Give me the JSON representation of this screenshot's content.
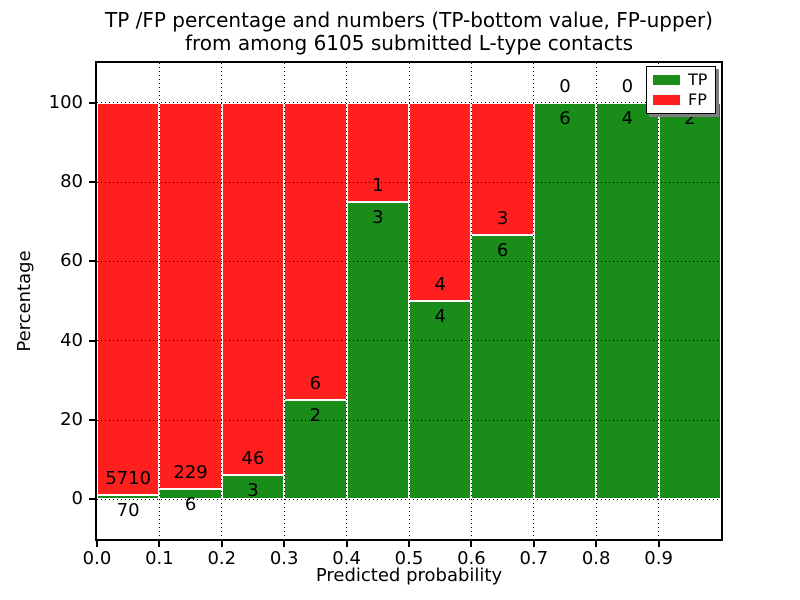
{
  "title": {
    "line1": "TP /FP percentage and numbers (TP-bottom value, FP-upper)",
    "line2": "from among 6105 submitted L-type contacts"
  },
  "axes": {
    "x_label": "Predicted probability",
    "y_label": "Percentage",
    "x_tick_labels": [
      "0.0",
      "0.1",
      "0.2",
      "0.3",
      "0.4",
      "0.5",
      "0.6",
      "0.7",
      "0.8",
      "0.9"
    ],
    "y_tick_labels": [
      "0",
      "20",
      "40",
      "60",
      "80",
      "100"
    ]
  },
  "legend": {
    "items": [
      {
        "label": "TP",
        "color": "#1a8c1a"
      },
      {
        "label": "FP",
        "color": "#ff1f1f"
      }
    ]
  },
  "chart_data": {
    "type": "bar",
    "stacked": true,
    "title": "TP /FP percentage and numbers (TP-bottom value, FP-upper) from among 6105 submitted L-type contacts",
    "xlabel": "Predicted probability",
    "ylabel": "Percentage",
    "xlim": [
      0.0,
      1.0
    ],
    "ylim": [
      -10,
      110
    ],
    "x_ticks": [
      0.0,
      0.1,
      0.2,
      0.3,
      0.4,
      0.5,
      0.6,
      0.7,
      0.8,
      0.9
    ],
    "y_ticks": [
      0,
      20,
      40,
      60,
      80,
      100
    ],
    "grid": true,
    "legend_position": "upper right",
    "bin_width": 0.1,
    "bin_starts": [
      0.0,
      0.1,
      0.2,
      0.3,
      0.4,
      0.5,
      0.6,
      0.7,
      0.8,
      0.9
    ],
    "series": [
      {
        "name": "TP",
        "color": "#1a8c1a",
        "counts": [
          70,
          6,
          3,
          2,
          3,
          4,
          6,
          6,
          4,
          2
        ]
      },
      {
        "name": "FP",
        "color": "#ff1f1f",
        "counts": [
          5710,
          229,
          46,
          6,
          1,
          4,
          3,
          0,
          0,
          0
        ]
      }
    ],
    "tp_percent": [
      1.21,
      2.55,
      6.12,
      25.0,
      75.0,
      50.0,
      66.67,
      100.0,
      100.0,
      100.0
    ],
    "total_contacts": 6105
  }
}
